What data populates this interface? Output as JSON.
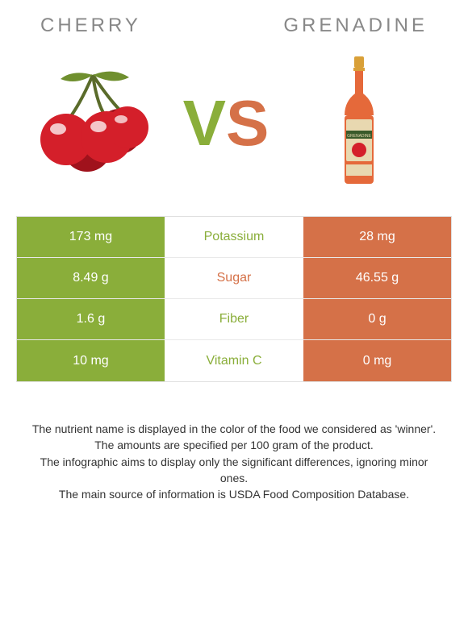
{
  "titles": {
    "left": "CHERRY",
    "right": "GRENADINE"
  },
  "vs": {
    "v": "V",
    "s": "S"
  },
  "colors": {
    "left_bg": "#8aae3a",
    "right_bg": "#d57148",
    "mid_green": "#8aae3a",
    "mid_orange": "#d57148",
    "cherry_red": "#d41f2a",
    "cherry_dark": "#a0121c",
    "cherry_highlight": "#ffffff",
    "stem": "#5a6b2a",
    "leaf": "#6f8f2e",
    "bottle_liquid": "#e5693a",
    "bottle_cap": "#d9a038",
    "bottle_label_bg": "#e8d8b0",
    "bottle_label_band": "#3a5a2a"
  },
  "rows": [
    {
      "left": "173 mg",
      "mid": "Potassium",
      "right": "28 mg",
      "mid_color": "mid_green"
    },
    {
      "left": "8.49 g",
      "mid": "Sugar",
      "right": "46.55 g",
      "mid_color": "mid_orange"
    },
    {
      "left": "1.6 g",
      "mid": "Fiber",
      "right": "0 g",
      "mid_color": "mid_green"
    },
    {
      "left": "10 mg",
      "mid": "Vitamin C",
      "right": "0 mg",
      "mid_color": "mid_green"
    }
  ],
  "footer": {
    "line1": "The nutrient name is displayed in the color of the food we considered as 'winner'.",
    "line2": "The amounts are specified per 100 gram of the product.",
    "line3": "The infographic aims to display only the significant differences, ignoring minor ones.",
    "line4": "The main source of information is USDA Food Composition Database."
  }
}
